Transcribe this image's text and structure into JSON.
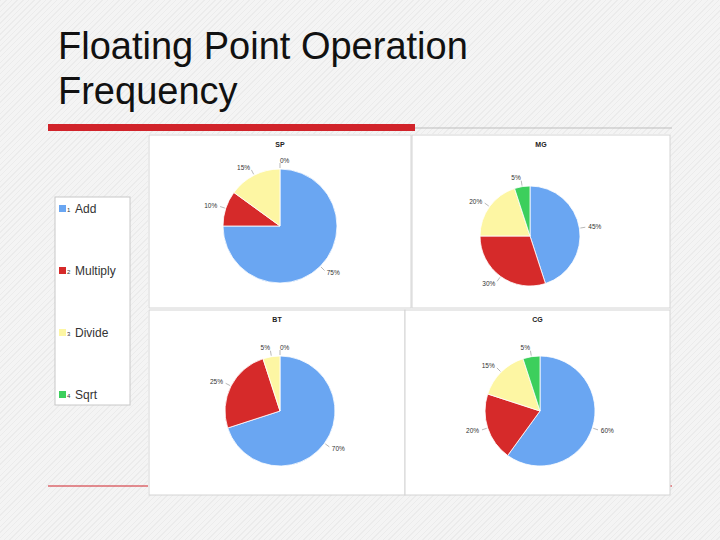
{
  "title": "Floating Point Operation Frequency",
  "legend": {
    "items": [
      {
        "number": 1,
        "label": "Add",
        "color": "#6aa6f2"
      },
      {
        "number": 2,
        "label": "Multiply",
        "color": "#d62a2a"
      },
      {
        "number": 3,
        "label": "Divide",
        "color": "#fdf6a3"
      },
      {
        "number": 4,
        "label": "Sqrt",
        "color": "#3ccf5c"
      }
    ]
  },
  "chart_data": [
    {
      "type": "pie",
      "title": "SP",
      "values": [
        75,
        10,
        15,
        0
      ],
      "value_labels": [
        "75%",
        "10%",
        "15%",
        "0%"
      ],
      "data_labels": true
    },
    {
      "type": "pie",
      "title": "MG",
      "values": [
        45,
        30,
        20,
        5
      ],
      "value_labels": [
        "45%",
        "30%",
        "20%",
        "5%"
      ],
      "data_labels": true
    },
    {
      "type": "pie",
      "title": "BT",
      "values": [
        70,
        25,
        5,
        0
      ],
      "value_labels": [
        "70%",
        "25%",
        "5%",
        "0%"
      ],
      "data_labels": true
    },
    {
      "type": "pie",
      "title": "CG",
      "values": [
        60,
        20,
        15,
        5
      ],
      "value_labels": [
        "60%",
        "20%",
        "15%",
        "5%"
      ],
      "data_labels": true
    }
  ]
}
